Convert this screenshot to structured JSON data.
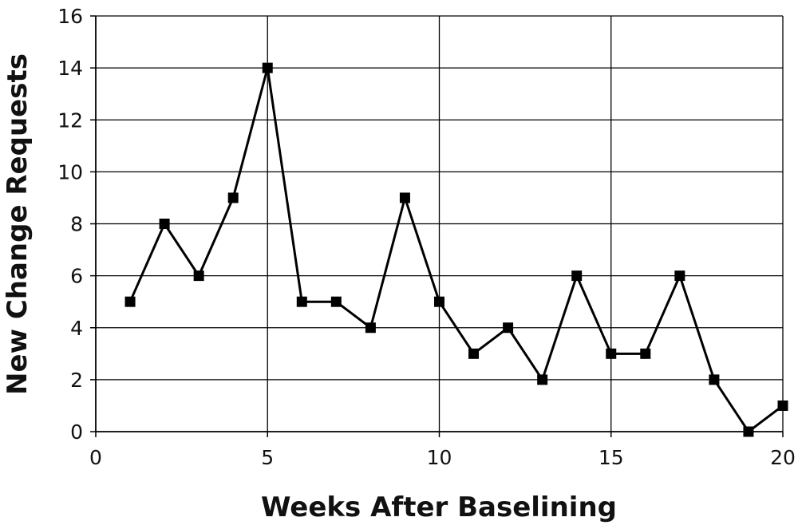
{
  "chart_data": {
    "type": "line",
    "title": "",
    "xlabel": "Weeks After Baselining",
    "ylabel": "New Change Requests",
    "xlim": [
      0,
      20
    ],
    "ylim": [
      0,
      16
    ],
    "xticks": [
      0,
      5,
      10,
      15,
      20
    ],
    "yticks": [
      0,
      2,
      4,
      6,
      8,
      10,
      12,
      14,
      16
    ],
    "grid": true,
    "legend": "none",
    "marker": "square",
    "colors": {
      "line": "#000000",
      "grid": "#000000",
      "background": "#ffffff"
    },
    "series": [
      {
        "x": [
          1,
          2,
          3,
          4,
          5,
          6,
          7,
          8,
          9,
          10,
          11,
          12,
          13,
          14,
          15,
          16,
          17,
          18,
          19,
          20
        ],
        "y": [
          5,
          8,
          6,
          9,
          14,
          5,
          5,
          4,
          9,
          5,
          3,
          4,
          2,
          6,
          3,
          3,
          6,
          2,
          0,
          1
        ]
      }
    ]
  }
}
